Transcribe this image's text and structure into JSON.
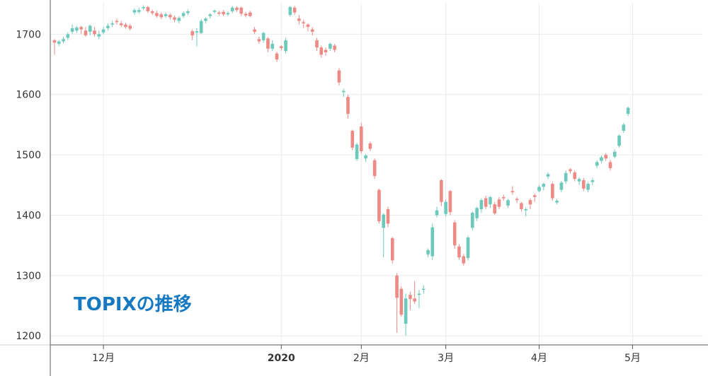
{
  "chart_data": {
    "type": "candlestick",
    "title": "TOPIXの推移",
    "xlabel": "",
    "ylabel": "",
    "ylim": [
      1185,
      1752
    ],
    "grid": true,
    "colors": {
      "up": "#6cc9bb",
      "down": "#ee8a86",
      "grid": "#e6ecef",
      "axis": "#555555",
      "title": "#1679c1"
    },
    "y_ticks": [
      {
        "value": 1200,
        "label": "1200"
      },
      {
        "value": 1300,
        "label": "1300"
      },
      {
        "value": 1400,
        "label": "1400"
      },
      {
        "value": 1500,
        "label": "1500"
      },
      {
        "value": 1600,
        "label": "1600"
      },
      {
        "value": 1700,
        "label": "1700"
      }
    ],
    "x_ticks": [
      {
        "index": 11,
        "label": "12月",
        "bold": false
      },
      {
        "index": 51,
        "label": "2020",
        "bold": true
      },
      {
        "index": 69,
        "label": "2月",
        "bold": false
      },
      {
        "index": 88,
        "label": "3月",
        "bold": false
      },
      {
        "index": 109,
        "label": "4月",
        "bold": false
      },
      {
        "index": 130,
        "label": "5月",
        "bold": false
      }
    ],
    "candles": [
      [
        1690,
        1686,
        1692,
        1666
      ],
      [
        1684,
        1688,
        1690,
        1680
      ],
      [
        1688,
        1692,
        1696,
        1685
      ],
      [
        1694,
        1700,
        1703,
        1690
      ],
      [
        1704,
        1710,
        1716,
        1700
      ],
      [
        1706,
        1711,
        1714,
        1702
      ],
      [
        1712,
        1708,
        1714,
        1700
      ],
      [
        1706,
        1698,
        1712,
        1696
      ],
      [
        1704,
        1714,
        1716,
        1698
      ],
      [
        1706,
        1700,
        1712,
        1696
      ],
      [
        1696,
        1700,
        1706,
        1692
      ],
      [
        1703,
        1708,
        1712,
        1700
      ],
      [
        1710,
        1714,
        1718,
        1706
      ],
      [
        1716,
        1718,
        1722,
        1712
      ],
      [
        1722,
        1720,
        1726,
        1716
      ],
      [
        1718,
        1715,
        1722,
        1712
      ],
      [
        1716,
        1712,
        1719,
        1709
      ],
      [
        1714,
        1709,
        1717,
        1706
      ],
      [
        1736,
        1740,
        1743,
        1732
      ],
      [
        1737,
        1740,
        1744,
        1734
      ],
      [
        1743,
        1745,
        1748,
        1740
      ],
      [
        1745,
        1738,
        1747,
        1735
      ],
      [
        1738,
        1735,
        1741,
        1732
      ],
      [
        1735,
        1730,
        1739,
        1727
      ],
      [
        1733,
        1728,
        1736,
        1725
      ],
      [
        1730,
        1733,
        1736,
        1727
      ],
      [
        1732,
        1728,
        1735,
        1724
      ],
      [
        1728,
        1724,
        1731,
        1720
      ],
      [
        1722,
        1727,
        1730,
        1718
      ],
      [
        1730,
        1735,
        1738,
        1727
      ],
      [
        1735,
        1738,
        1741,
        1732
      ],
      [
        1705,
        1698,
        1708,
        1690
      ],
      [
        1703,
        1705,
        1710,
        1680
      ],
      [
        1702,
        1722,
        1725,
        1700
      ],
      [
        1722,
        1726,
        1728,
        1718
      ],
      [
        1730,
        1733,
        1735,
        1726
      ],
      [
        1737,
        1739,
        1741,
        1734
      ],
      [
        1736,
        1734,
        1739,
        1731
      ],
      [
        1737,
        1733,
        1740,
        1730
      ],
      [
        1733,
        1735,
        1738,
        1730
      ],
      [
        1738,
        1744,
        1747,
        1735
      ],
      [
        1744,
        1740,
        1746,
        1737
      ],
      [
        1744,
        1734,
        1746,
        1730
      ],
      [
        1734,
        1731,
        1737,
        1728
      ],
      [
        1736,
        1730,
        1739,
        1728
      ],
      [
        1708,
        1704,
        1712,
        1700
      ],
      [
        1692,
        1688,
        1696,
        1684
      ],
      [
        1690,
        1702,
        1704,
        1686
      ],
      [
        1693,
        1676,
        1695,
        1670
      ],
      [
        1676,
        1684,
        1690,
        1672
      ],
      [
        1668,
        1658,
        1671,
        1654
      ],
      [
        1680,
        1677,
        1682,
        1673
      ],
      [
        1672,
        1690,
        1694,
        1668
      ],
      [
        1732,
        1745,
        1747,
        1729
      ],
      [
        1744,
        1736,
        1747,
        1732
      ],
      [
        1726,
        1722,
        1732,
        1716
      ],
      [
        1720,
        1718,
        1724,
        1710
      ],
      [
        1716,
        1712,
        1718,
        1705
      ],
      [
        1708,
        1704,
        1712,
        1698
      ],
      [
        1690,
        1678,
        1694,
        1672
      ],
      [
        1678,
        1666,
        1681,
        1661
      ],
      [
        1674,
        1670,
        1678,
        1664
      ],
      [
        1676,
        1684,
        1686,
        1672
      ],
      [
        1681,
        1674,
        1684,
        1670
      ],
      [
        1640,
        1620,
        1644,
        1615
      ],
      [
        1604,
        1606,
        1610,
        1596
      ],
      [
        1596,
        1568,
        1600,
        1560
      ],
      [
        1540,
        1512,
        1542,
        1508
      ],
      [
        1493,
        1517,
        1520,
        1490
      ],
      [
        1547,
        1506,
        1553,
        1502
      ],
      [
        1494,
        1499,
        1502,
        1488
      ],
      [
        1519,
        1510,
        1522,
        1506
      ],
      [
        1491,
        1465,
        1494,
        1460
      ],
      [
        1442,
        1390,
        1444,
        1386
      ],
      [
        1379,
        1401,
        1403,
        1330
      ],
      [
        1410,
        1386,
        1414,
        1380
      ],
      [
        1362,
        1325,
        1364,
        1320
      ],
      [
        1300,
        1263,
        1304,
        1205
      ],
      [
        1278,
        1235,
        1282,
        1232
      ],
      [
        1220,
        1262,
        1270,
        1200
      ],
      [
        1268,
        1261,
        1273,
        1243
      ],
      [
        1262,
        1257,
        1291,
        1253
      ],
      [
        1268,
        1270,
        1276,
        1246
      ],
      [
        1278,
        1278,
        1284,
        1270
      ],
      [
        1335,
        1342,
        1345,
        1330
      ],
      [
        1332,
        1380,
        1386,
        1326
      ],
      [
        1400,
        1408,
        1414,
        1396
      ],
      [
        1458,
        1422,
        1460,
        1415
      ],
      [
        1402,
        1422,
        1426,
        1398
      ],
      [
        1440,
        1405,
        1442,
        1400
      ],
      [
        1388,
        1350,
        1392,
        1344
      ],
      [
        1348,
        1330,
        1352,
        1326
      ],
      [
        1332,
        1320,
        1336,
        1316
      ],
      [
        1329,
        1363,
        1366,
        1325
      ],
      [
        1379,
        1404,
        1406,
        1375
      ],
      [
        1395,
        1412,
        1414,
        1390
      ],
      [
        1410,
        1425,
        1428,
        1404
      ],
      [
        1428,
        1414,
        1432,
        1410
      ],
      [
        1418,
        1430,
        1432,
        1412
      ],
      [
        1418,
        1403,
        1422,
        1400
      ],
      [
        1426,
        1414,
        1430,
        1410
      ],
      [
        1430,
        1428,
        1434,
        1424
      ],
      [
        1416,
        1425,
        1427,
        1412
      ],
      [
        1440,
        1438,
        1448,
        1434
      ],
      [
        1427,
        1425,
        1430,
        1420
      ],
      [
        1420,
        1410,
        1422,
        1406
      ],
      [
        1408,
        1410,
        1413,
        1398
      ],
      [
        1425,
        1418,
        1428,
        1410
      ],
      [
        1433,
        1430,
        1436,
        1422
      ],
      [
        1440,
        1447,
        1450,
        1438
      ],
      [
        1447,
        1452,
        1454,
        1441
      ],
      [
        1464,
        1468,
        1471,
        1460
      ],
      [
        1452,
        1428,
        1455,
        1424
      ],
      [
        1421,
        1424,
        1427,
        1418
      ],
      [
        1442,
        1454,
        1457,
        1438
      ],
      [
        1456,
        1470,
        1474,
        1452
      ],
      [
        1476,
        1473,
        1478,
        1469
      ],
      [
        1471,
        1460,
        1474,
        1456
      ],
      [
        1456,
        1460,
        1463,
        1450
      ],
      [
        1458,
        1444,
        1462,
        1440
      ],
      [
        1442,
        1452,
        1455,
        1438
      ],
      [
        1455,
        1458,
        1462,
        1450
      ],
      [
        1482,
        1488,
        1491,
        1478
      ],
      [
        1490,
        1496,
        1499,
        1486
      ],
      [
        1500,
        1494,
        1503,
        1490
      ],
      [
        1488,
        1478,
        1492,
        1474
      ],
      [
        1497,
        1505,
        1509,
        1494
      ],
      [
        1515,
        1532,
        1534,
        1512
      ],
      [
        1540,
        1550,
        1553,
        1536
      ],
      [
        1568,
        1578,
        1580,
        1564
      ]
    ]
  }
}
